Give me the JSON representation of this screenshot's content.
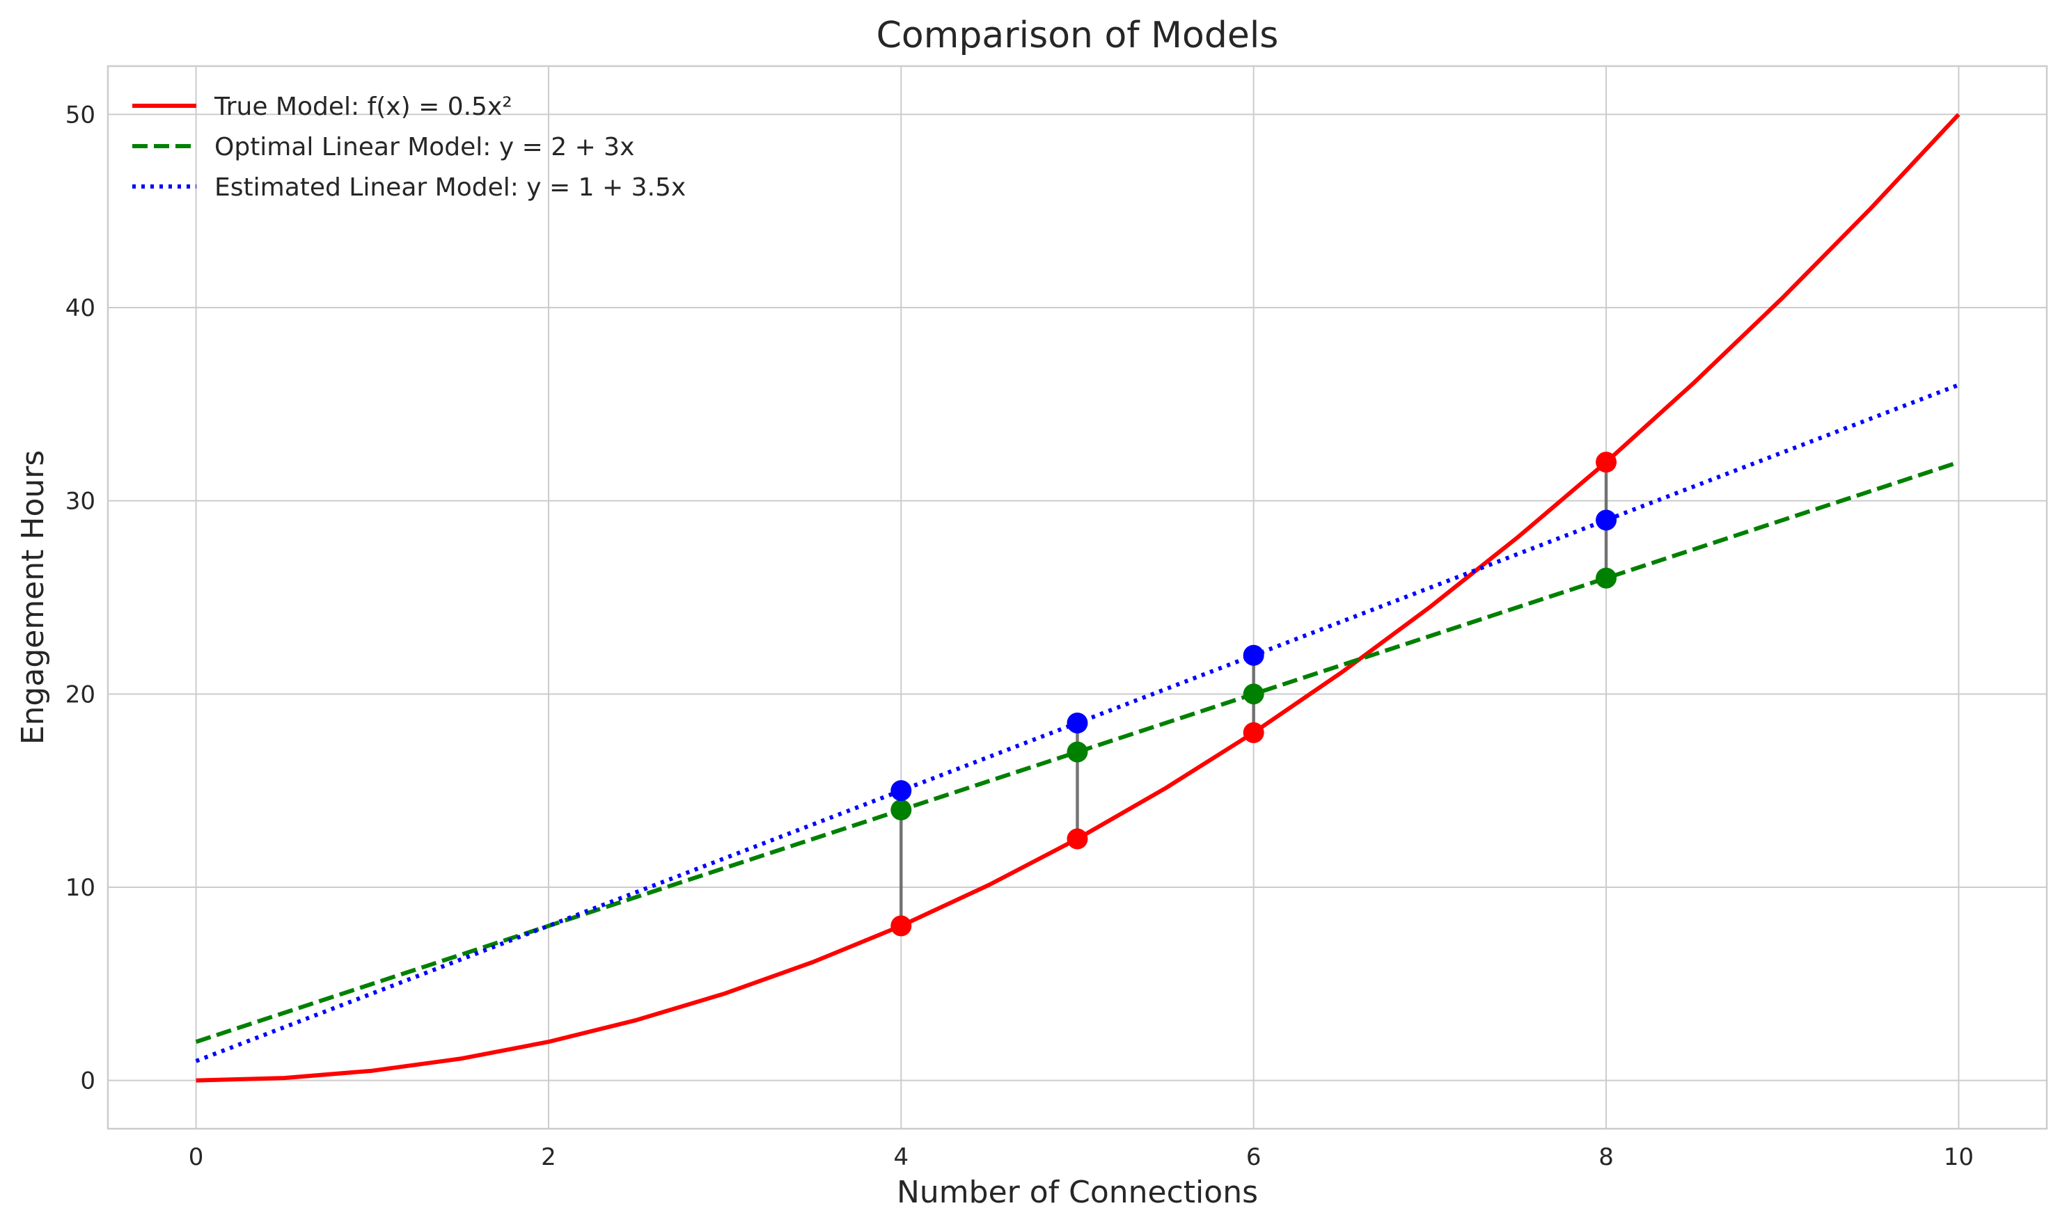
{
  "chart_data": {
    "type": "line",
    "title": "Comparison of Models",
    "xlabel": "Number of Connections",
    "ylabel": "Engagement Hours",
    "xlim": [
      -0.5,
      10.5
    ],
    "ylim": [
      -2.5,
      52.5
    ],
    "x_ticks": [
      0,
      2,
      4,
      6,
      8,
      10
    ],
    "y_ticks": [
      0,
      10,
      20,
      30,
      40,
      50
    ],
    "grid": true,
    "legend_position": "top-left",
    "series": [
      {
        "name": "True Model: f(x) = 0.5x²",
        "style": "solid",
        "color": "#ff0000",
        "x": [
          0,
          0.5,
          1,
          1.5,
          2,
          2.5,
          3,
          3.5,
          4,
          4.5,
          5,
          5.5,
          6,
          6.5,
          7,
          7.5,
          8,
          8.5,
          9,
          9.5,
          10
        ],
        "y": [
          0,
          0.125,
          0.5,
          1.125,
          2,
          3.125,
          4.5,
          6.125,
          8,
          10.125,
          12.5,
          15.125,
          18,
          21.125,
          24.5,
          28.125,
          32,
          36.125,
          40.5,
          45.125,
          50
        ]
      },
      {
        "name": "Optimal Linear Model: y = 2 + 3x",
        "style": "dashed",
        "color": "#008000",
        "x": [
          0,
          10
        ],
        "y": [
          2,
          32
        ]
      },
      {
        "name": "Estimated Linear Model: y = 1 + 3.5x",
        "style": "dotted",
        "color": "#0000ff",
        "x": [
          0,
          10
        ],
        "y": [
          1,
          36
        ]
      }
    ],
    "points": {
      "x": [
        4,
        5,
        6,
        8
      ],
      "true": [
        8,
        12.5,
        18,
        32
      ],
      "optimal": [
        14,
        17,
        20,
        26
      ],
      "estimated": [
        15,
        18.5,
        22,
        29
      ]
    },
    "colors": {
      "true": "#ff0000",
      "optimal": "#008000",
      "estimated": "#0000ff",
      "connector": "#666666"
    }
  }
}
